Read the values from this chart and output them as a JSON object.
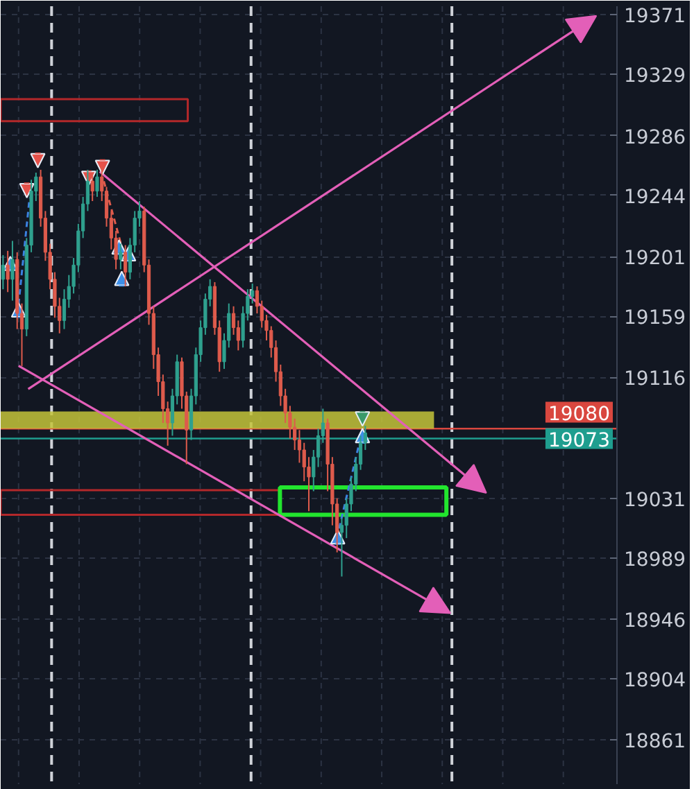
{
  "chart_data": {
    "type": "candlestick",
    "categories": [
      null,
      null,
      null,
      null,
      null,
      null,
      null,
      null,
      null,
      null,
      null,
      null,
      null,
      null,
      null,
      null,
      null,
      null,
      null,
      null,
      null,
      null,
      null,
      null,
      null,
      null,
      null,
      null,
      null,
      null,
      null,
      null,
      null,
      null,
      null,
      null,
      null,
      null,
      null,
      null,
      null,
      null,
      null,
      null,
      null,
      null,
      null,
      null,
      null,
      null,
      null,
      null,
      null,
      null,
      null,
      null,
      null,
      null,
      null,
      null,
      null,
      null,
      null,
      null,
      null,
      null,
      null,
      null,
      null,
      null,
      null,
      null,
      null,
      null,
      null,
      null,
      null,
      null,
      null,
      null,
      null,
      null,
      null,
      null,
      null,
      null,
      null,
      null,
      null,
      null,
      null,
      null,
      null,
      null,
      null,
      null,
      null,
      null,
      null,
      null,
      null,
      null,
      null,
      null,
      null,
      null,
      null,
      null,
      null,
      null,
      null,
      null,
      null,
      null,
      null,
      null,
      null,
      null,
      null,
      null,
      null,
      null,
      null,
      null,
      null,
      null,
      null,
      null,
      null,
      null,
      null
    ],
    "ohlc": [
      [
        19185,
        19202,
        19178,
        19195
      ],
      [
        19195,
        19205,
        19176,
        19185
      ],
      [
        19185,
        19212,
        19170,
        19199
      ],
      [
        19199,
        19204,
        19150,
        19161
      ],
      [
        19161,
        19168,
        19124,
        19150
      ],
      [
        19150,
        19214,
        19145,
        19209
      ],
      [
        19209,
        19255,
        19204,
        19247
      ],
      [
        19247,
        19260,
        19240,
        19257
      ],
      [
        19257,
        19262,
        19222,
        19228
      ],
      [
        19228,
        19233,
        19198,
        19204
      ],
      [
        19204,
        19210,
        19178,
        19185
      ],
      [
        19185,
        19190,
        19158,
        19166
      ],
      [
        19166,
        19172,
        19147,
        19156
      ],
      [
        19156,
        19178,
        19150,
        19171
      ],
      [
        19171,
        19188,
        19165,
        19180
      ],
      [
        19180,
        19200,
        19175,
        19195
      ],
      [
        19195,
        19224,
        19190,
        19219
      ],
      [
        19219,
        19243,
        19214,
        19238
      ],
      [
        19238,
        19262,
        19233,
        19254
      ],
      [
        19254,
        19260,
        19240,
        19247
      ],
      [
        19247,
        19262,
        19243,
        19257
      ],
      [
        19257,
        19264,
        19240,
        19247
      ],
      [
        19247,
        19250,
        19222,
        19228
      ],
      [
        19228,
        19233,
        19206,
        19214
      ],
      [
        19214,
        19219,
        19192,
        19199
      ],
      [
        19199,
        19210,
        19192,
        19204
      ],
      [
        19204,
        19209,
        19180,
        19190
      ],
      [
        19190,
        19214,
        19185,
        19209
      ],
      [
        19209,
        19233,
        19204,
        19228
      ],
      [
        19228,
        19240,
        19222,
        19233
      ],
      [
        19233,
        19236,
        19190,
        19195
      ],
      [
        19195,
        19199,
        19153,
        19161
      ],
      [
        19161,
        19166,
        19122,
        19132
      ],
      [
        19132,
        19137,
        19103,
        19113
      ],
      [
        19113,
        19118,
        19084,
        19094
      ],
      [
        19094,
        19099,
        19068,
        19084
      ],
      [
        19084,
        19108,
        19075,
        19103
      ],
      [
        19103,
        19132,
        19097,
        19127
      ],
      [
        19127,
        19130,
        19094,
        19103
      ],
      [
        19103,
        19106,
        19055,
        19079
      ],
      [
        19079,
        19108,
        19072,
        19103
      ],
      [
        19103,
        19137,
        19097,
        19132
      ],
      [
        19132,
        19156,
        19127,
        19151
      ],
      [
        19151,
        19175,
        19146,
        19171
      ],
      [
        19171,
        19185,
        19166,
        19180
      ],
      [
        19180,
        19183,
        19146,
        19151
      ],
      [
        19151,
        19156,
        19120,
        19127
      ],
      [
        19127,
        19147,
        19122,
        19142
      ],
      [
        19142,
        19168,
        19137,
        19161
      ],
      [
        19161,
        19166,
        19146,
        19151
      ],
      [
        19151,
        19156,
        19135,
        19142
      ],
      [
        19142,
        19166,
        19137,
        19161
      ],
      [
        19161,
        19178,
        19156,
        19173
      ],
      [
        19173,
        19182,
        19168,
        19177
      ],
      [
        19177,
        19180,
        19161,
        19166
      ],
      [
        19166,
        19170,
        19151,
        19156
      ],
      [
        19156,
        19160,
        19142,
        19149
      ],
      [
        19149,
        19152,
        19130,
        19137
      ],
      [
        19137,
        19142,
        19113,
        19120
      ],
      [
        19120,
        19125,
        19096,
        19103
      ],
      [
        19103,
        19108,
        19084,
        19091
      ],
      [
        19091,
        19096,
        19073,
        19081
      ],
      [
        19081,
        19087,
        19065,
        19072
      ],
      [
        19072,
        19079,
        19056,
        19065
      ],
      [
        19065,
        19070,
        19043,
        19053
      ],
      [
        19053,
        19060,
        19022,
        19046
      ],
      [
        19046,
        19065,
        19036,
        19060
      ],
      [
        19060,
        19080,
        19053,
        19075
      ],
      [
        19075,
        19094,
        19070,
        19084
      ],
      [
        19084,
        19087,
        19036,
        19055
      ],
      [
        19055,
        19060,
        19012,
        19027
      ],
      [
        19027,
        19031,
        18993,
        19007
      ],
      [
        19007,
        19017,
        18976,
        19012
      ],
      [
        19012,
        19031,
        19003,
        19027
      ],
      [
        19027,
        19046,
        19022,
        19041
      ],
      [
        19041,
        19060,
        19036,
        19055
      ],
      [
        19055,
        19075,
        19051,
        19070
      ],
      [
        19070,
        19082,
        19065,
        19077
      ],
      null,
      null,
      null,
      null,
      null,
      null,
      null,
      null,
      null,
      null,
      null,
      null,
      null,
      null,
      null,
      null,
      null,
      null,
      null,
      null,
      null,
      null,
      null,
      null,
      null,
      null,
      null,
      null,
      null,
      null,
      null,
      null,
      null,
      null,
      null,
      null,
      null,
      null,
      null,
      null,
      null,
      null,
      null,
      null,
      null,
      null,
      null,
      null,
      null,
      null,
      null,
      null,
      null
    ],
    "colors": [
      "#2fa08e",
      "#de5b4c",
      "#2fa08e",
      "#de5b4c",
      "#de5b4c",
      "#2fa08e",
      "#2fa08e",
      "#2fa08e",
      "#de5b4c",
      "#de5b4c",
      "#de5b4c",
      "#de5b4c",
      "#de5b4c",
      "#2fa08e",
      "#2fa08e",
      "#2fa08e",
      "#2fa08e",
      "#2fa08e",
      "#2fa08e",
      "#de5b4c",
      "#2fa08e",
      "#de5b4c",
      "#de5b4c",
      "#de5b4c",
      "#de5b4c",
      "#2fa08e",
      "#de5b4c",
      "#2fa08e",
      "#2fa08e",
      "#2fa08e",
      "#de5b4c",
      "#de5b4c",
      "#de5b4c",
      "#de5b4c",
      "#de5b4c",
      "#de5b4c",
      "#2fa08e",
      "#2fa08e",
      "#de5b4c",
      "#de5b4c",
      "#2fa08e",
      "#2fa08e",
      "#2fa08e",
      "#2fa08e",
      "#2fa08e",
      "#de5b4c",
      "#de5b4c",
      "#2fa08e",
      "#2fa08e",
      "#de5b4c",
      "#de5b4c",
      "#2fa08e",
      "#2fa08e",
      "#2fa08e",
      "#de5b4c",
      "#de5b4c",
      "#de5b4c",
      "#de5b4c",
      "#de5b4c",
      "#de5b4c",
      "#de5b4c",
      "#de5b4c",
      "#de5b4c",
      "#de5b4c",
      "#de5b4c",
      "#de5b4c",
      "#2fa08e",
      "#2fa08e",
      "#2fa08e",
      "#de5b4c",
      "#de5b4c",
      "#de5b4c",
      "#2fa08e",
      "#2fa08e",
      "#2fa08e",
      "#2fa08e",
      "#2fa08e",
      "#2fa08e",
      null,
      null,
      null,
      null,
      null,
      null,
      null,
      null,
      null,
      null,
      null,
      null,
      null,
      null,
      null,
      null,
      null,
      null,
      null,
      null,
      null,
      null,
      null,
      null,
      null,
      null,
      null,
      null,
      null,
      null,
      null,
      null,
      null,
      null,
      null,
      null,
      null,
      null,
      null,
      null,
      null,
      null,
      null,
      null,
      null,
      null,
      null,
      null,
      null,
      null,
      null,
      null,
      null
    ],
    "ylim": [
      18830,
      19377
    ],
    "yticks": [
      18861,
      18904,
      18946,
      18989,
      19031,
      19116,
      19159,
      19201,
      19244,
      19286,
      19329,
      19371
    ],
    "grid": "y",
    "tick_labels": "y",
    "ref_lines": [
      {
        "axis": "y",
        "value": 19080,
        "label": "19080",
        "color": "#d9473f"
      },
      {
        "axis": "y",
        "value": 19073,
        "label": "19073",
        "color": "#1f9e8f"
      }
    ],
    "bands": [
      {
        "axis": "y",
        "from": 19080,
        "to": 19092,
        "color": "#c4c43a"
      }
    ]
  }
}
